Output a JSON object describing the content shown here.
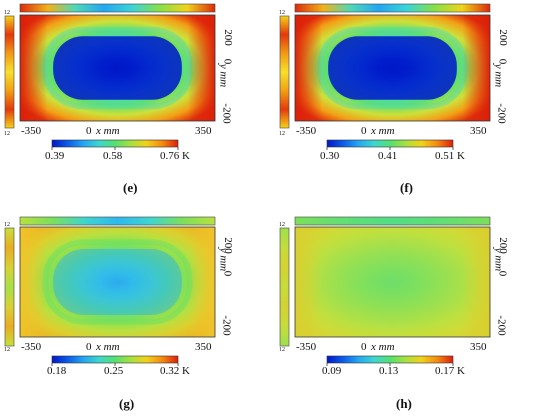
{
  "panels": [
    {
      "id": "e",
      "caption": "(e)",
      "colorbar": {
        "min": "0.39",
        "mid": "0.58",
        "max": "0.76 K"
      },
      "profile": "strong",
      "axes": {
        "x_left": "-350",
        "x_center": "0",
        "x_right": "350",
        "x_label": "x mm",
        "y_top": "200",
        "y_center": "0",
        "y_bottom": "-200",
        "y_label": "y mm",
        "small_tick": "12"
      }
    },
    {
      "id": "f",
      "caption": "(f)",
      "colorbar": {
        "min": "0.30",
        "mid": "0.41",
        "max": "0.51 K"
      },
      "profile": "strong",
      "axes": {
        "x_left": "-350",
        "x_center": "0",
        "x_right": "350",
        "x_label": "x mm",
        "y_top": "200",
        "y_center": "0",
        "y_bottom": "-200",
        "y_label": "y mm",
        "small_tick": "12"
      }
    },
    {
      "id": "g",
      "caption": "(g)",
      "colorbar": {
        "min": "0.18",
        "mid": "0.25",
        "max": "0.32 K"
      },
      "profile": "medium",
      "axes": {
        "x_left": "-350",
        "x_center": "0",
        "x_right": "350",
        "x_label": "x mm",
        "y_top": "200",
        "y_center": "0",
        "y_bottom": "-200",
        "y_label": "y mm",
        "small_tick": "12"
      }
    },
    {
      "id": "h",
      "caption": "(h)",
      "colorbar": {
        "min": "0.09",
        "mid": "0.13",
        "max": "0.17 K"
      },
      "profile": "weak",
      "axes": {
        "x_left": "-350",
        "x_center": "0",
        "x_right": "350",
        "x_label": "x mm",
        "y_top": "200",
        "y_center": "0",
        "y_bottom": "-200",
        "y_label": "y mm",
        "small_tick": "12"
      }
    }
  ],
  "colormap": [
    "#0016c8",
    "#0b5be8",
    "#25a6f0",
    "#3ed6cf",
    "#55e070",
    "#a8e03e",
    "#f2d21a",
    "#f58a0f",
    "#dc1f0a"
  ]
}
